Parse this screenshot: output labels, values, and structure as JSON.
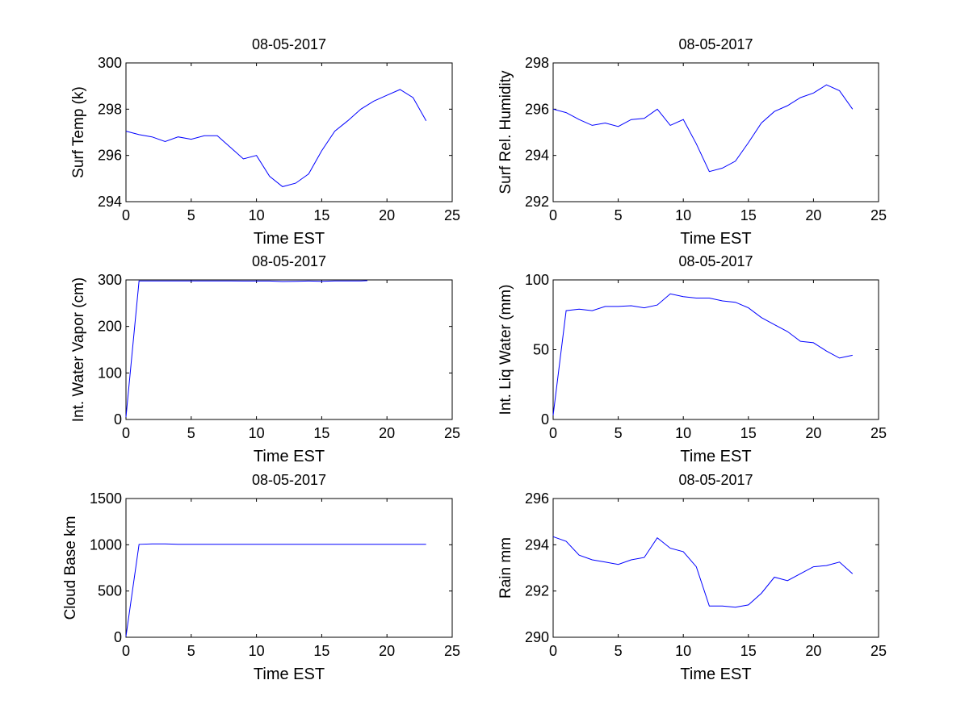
{
  "series_color": "#0000ff",
  "chart_data": [
    {
      "type": "line",
      "title": "08-05-2017",
      "xlabel": "Time EST",
      "ylabel": "Surf Temp (k)",
      "xlim": [
        0,
        25
      ],
      "ylim": [
        294,
        300
      ],
      "xticks": [
        "0",
        "5",
        "10",
        "15",
        "20",
        "25"
      ],
      "yticks": [
        "294",
        "296",
        "298",
        "300"
      ],
      "grid": false,
      "series": [
        {
          "x": [
            0,
            1,
            2,
            3,
            4,
            5,
            6,
            7,
            8,
            9,
            10,
            11,
            12,
            13,
            14,
            15,
            16,
            17,
            18,
            19,
            20,
            21,
            22,
            23
          ],
          "values": [
            297.05,
            296.9,
            296.8,
            296.6,
            296.8,
            296.7,
            296.85,
            296.85,
            296.35,
            295.85,
            296.0,
            295.1,
            294.65,
            294.8,
            295.2,
            296.2,
            297.05,
            297.5,
            298.0,
            298.35,
            298.6,
            298.85,
            298.5,
            297.5
          ]
        }
      ]
    },
    {
      "type": "line",
      "title": "08-05-2017",
      "xlabel": "Time EST",
      "ylabel": "Surf Rel. Humidity",
      "xlim": [
        0,
        25
      ],
      "ylim": [
        292,
        298
      ],
      "xticks": [
        "0",
        "5",
        "10",
        "15",
        "20",
        "25"
      ],
      "yticks": [
        "292",
        "294",
        "296",
        "298"
      ],
      "grid": false,
      "series": [
        {
          "x": [
            0,
            1,
            2,
            3,
            4,
            5,
            6,
            7,
            8,
            9,
            10,
            11,
            12,
            13,
            14,
            15,
            16,
            17,
            18,
            19,
            20,
            21,
            22,
            23
          ],
          "values": [
            296.0,
            295.85,
            295.55,
            295.3,
            295.4,
            295.25,
            295.55,
            295.6,
            296.0,
            295.3,
            295.55,
            294.5,
            293.3,
            293.45,
            293.75,
            294.55,
            295.4,
            295.9,
            296.15,
            296.5,
            296.7,
            297.05,
            296.8,
            296.0
          ]
        }
      ]
    },
    {
      "type": "line",
      "title": "08-05-2017",
      "xlabel": "Time EST",
      "ylabel": "Int. Water Vapor (cm)",
      "xlim": [
        0,
        25
      ],
      "ylim": [
        0,
        300
      ],
      "xticks": [
        "0",
        "5",
        "10",
        "15",
        "20",
        "25"
      ],
      "yticks": [
        "0",
        "100",
        "200",
        "300"
      ],
      "grid": false,
      "series": [
        {
          "x": [
            0,
            1,
            2,
            3,
            4,
            5,
            6,
            7,
            8,
            9,
            10,
            11,
            12,
            13,
            14,
            15,
            16,
            17,
            18,
            18.5
          ],
          "values": [
            5,
            298,
            298,
            298,
            298,
            298,
            298,
            298,
            298,
            297.5,
            297.5,
            297.5,
            296.5,
            297,
            297.5,
            297,
            298,
            298,
            298,
            298.5
          ]
        }
      ]
    },
    {
      "type": "line",
      "title": "08-05-2017",
      "xlabel": "Time EST",
      "ylabel": "Int. Liq Water (mm)",
      "xlim": [
        0,
        25
      ],
      "ylim": [
        0,
        100
      ],
      "xticks": [
        "0",
        "5",
        "10",
        "15",
        "20",
        "25"
      ],
      "yticks": [
        "0",
        "50",
        "100"
      ],
      "grid": false,
      "series": [
        {
          "x": [
            0,
            1,
            2,
            3,
            4,
            5,
            6,
            7,
            8,
            9,
            10,
            11,
            12,
            13,
            14,
            15,
            16,
            17,
            18,
            19,
            20,
            21,
            22,
            23
          ],
          "values": [
            3,
            78,
            79,
            78,
            81,
            81,
            81.5,
            80,
            82,
            90,
            88,
            87,
            87,
            85,
            84,
            80,
            73,
            68,
            63,
            56,
            55,
            49,
            44,
            46
          ]
        }
      ]
    },
    {
      "type": "line",
      "title": "08-05-2017",
      "xlabel": "Time EST",
      "ylabel": "Cloud Base km",
      "xlim": [
        0,
        25
      ],
      "ylim": [
        0,
        1500
      ],
      "xticks": [
        "0",
        "5",
        "10",
        "15",
        "20",
        "25"
      ],
      "yticks": [
        "0",
        "500",
        "1000",
        "1500"
      ],
      "grid": false,
      "series": [
        {
          "x": [
            0,
            1,
            2,
            3,
            4,
            5,
            6,
            7,
            8,
            9,
            10,
            11,
            12,
            13,
            14,
            15,
            16,
            17,
            18,
            19,
            20,
            21,
            22,
            23
          ],
          "values": [
            10,
            1005,
            1010,
            1010,
            1005,
            1005,
            1005,
            1005,
            1005,
            1005,
            1005,
            1005,
            1005,
            1005,
            1005,
            1005,
            1005,
            1005,
            1005,
            1005,
            1005,
            1005,
            1005,
            1005
          ]
        }
      ]
    },
    {
      "type": "line",
      "title": "08-05-2017",
      "xlabel": "Time EST",
      "ylabel": "Rain mm",
      "xlim": [
        0,
        25
      ],
      "ylim": [
        290,
        296
      ],
      "xticks": [
        "0",
        "5",
        "10",
        "15",
        "20",
        "25"
      ],
      "yticks": [
        "290",
        "292",
        "294",
        "296"
      ],
      "grid": false,
      "series": [
        {
          "x": [
            0,
            1,
            2,
            3,
            4,
            5,
            6,
            7,
            8,
            9,
            10,
            11,
            12,
            13,
            14,
            15,
            16,
            17,
            18,
            19,
            20,
            21,
            22,
            23
          ],
          "values": [
            294.35,
            294.15,
            293.55,
            293.35,
            293.25,
            293.15,
            293.35,
            293.45,
            294.3,
            293.85,
            293.7,
            293.05,
            291.35,
            291.35,
            291.3,
            291.4,
            291.9,
            292.6,
            292.45,
            292.75,
            293.05,
            293.1,
            293.25,
            292.75
          ]
        }
      ]
    }
  ]
}
